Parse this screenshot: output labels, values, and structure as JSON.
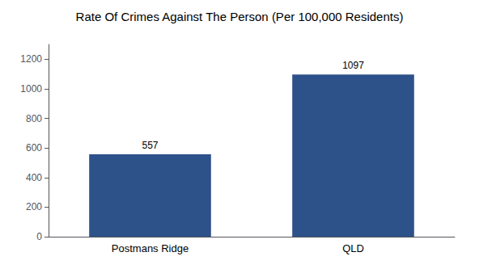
{
  "chart_data": {
    "type": "bar",
    "title": "Rate Of Crimes Against The Person (Per 100,000 Residents)",
    "categories": [
      "Postmans Ridge",
      "QLD"
    ],
    "values": [
      557,
      1097
    ],
    "color": "#2d5189",
    "ylim": [
      0,
      1300
    ],
    "yticks": [
      0,
      200,
      400,
      600,
      800,
      1000,
      1200
    ],
    "grid": false,
    "data_labels": true
  }
}
